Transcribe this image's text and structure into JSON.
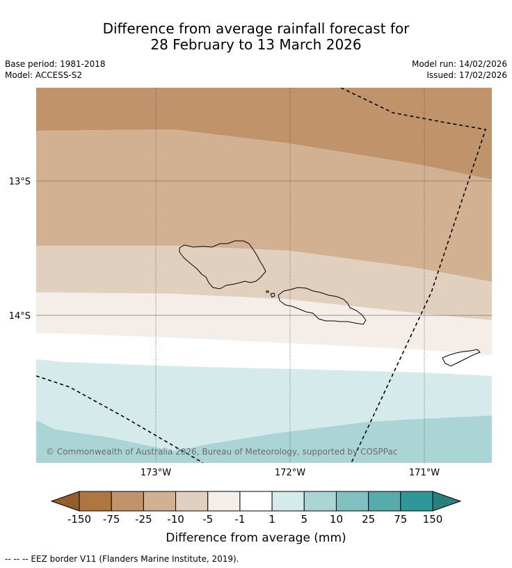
{
  "title": {
    "line1": "Difference from average rainfall forecast for",
    "line2": "28 February to 13 March 2026"
  },
  "meta": {
    "base_period": "Base period: 1981-2018",
    "model": "Model: ACCESS-S2",
    "model_run": "Model run: 14/02/2026",
    "issued": "Issued: 17/02/2026"
  },
  "map": {
    "lat_labels": [
      "13°S",
      "14°S"
    ],
    "lon_labels": [
      "173°W",
      "172°W",
      "171°W"
    ],
    "copyright": "© Commonwealth of Australia 2026, Bureau of Meteorology, supported by COSPPac"
  },
  "colorbar": {
    "title": "Difference from average (mm)",
    "tick_labels": [
      "-150",
      "-75",
      "-25",
      "-10",
      "-5",
      "-1",
      "1",
      "5",
      "10",
      "25",
      "75",
      "150"
    ],
    "colors": {
      "below_min": "#955d2b",
      "bins": [
        "#ae7640",
        "#c0936a",
        "#d2b193",
        "#e2d0bf",
        "#f4ede8",
        "#ffffff",
        "#d5eaea",
        "#abd5d5",
        "#81c0c1",
        "#57abac",
        "#2d9897"
      ],
      "above_max": "#2a7f7d"
    }
  },
  "footnote": "-- -- -- EEZ border V11 (Flanders Marine Institute, 2019)."
}
